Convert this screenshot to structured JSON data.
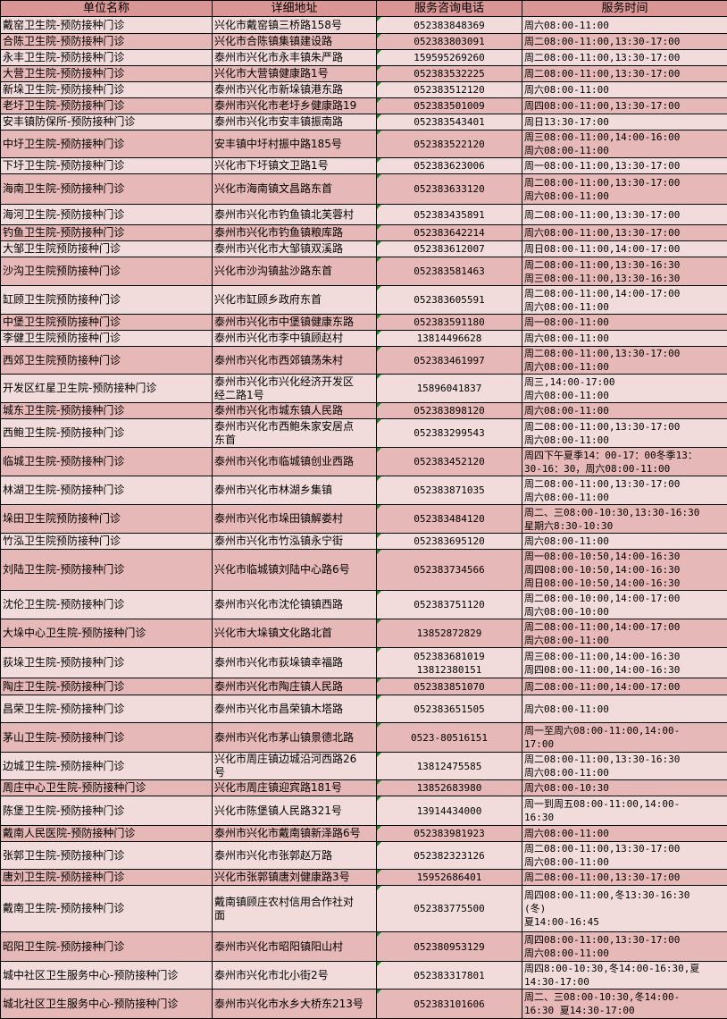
{
  "table": {
    "headers": [
      "单位名称",
      "详细地址",
      "服务咨询电话",
      "服务时间"
    ],
    "colors": {
      "header": "#da9694",
      "row_dark": "#e6b8b7",
      "row_light": "#f2dcdb",
      "comment_marker": "#1a8a1a"
    },
    "rows": [
      [
        "戴窑卫生院-预防接种门诊",
        "兴化市戴窑镇三桥路158号",
        "052383848369",
        "周六08:00-11:00"
      ],
      [
        "合陈卫生院-预防接种门诊",
        "兴化市合陈镇集镇建设路",
        "052383803091",
        "周二08:00-11:00,13:30-17:00"
      ],
      [
        "永丰卫生院-预防接种门诊",
        "泰州市兴化市永丰镇朱严路",
        "15959526926​0",
        "周二08:00-11:00,13:30-17:00"
      ],
      [
        "大营卫生院-预防接种门诊",
        "兴化市大营镇健康路1号",
        "052383532225",
        "周二08:00-11:00,13:30-17:00"
      ],
      [
        "新垛卫生院-预防接种门诊",
        "泰州市兴化市新垛镇港东路",
        "052383512120",
        "周六08:00-11:00"
      ],
      [
        "老圩卫生院-预防接种门诊",
        "泰州市兴化市老圩乡健康路19",
        "052383501009",
        "周四08:00-11:00,13:30-17:00"
      ],
      [
        "安丰镇防保所-预防接种门诊",
        "泰州市兴化市安丰镇振南路",
        "052383543401",
        "周日13:30-17:00"
      ],
      [
        "中圩卫生院-预防接种门诊",
        "安丰镇中圩村振中路185号",
        "052383522120",
        "周三08:00-11:00,14:00-16:00\n周六08:00-11:00"
      ],
      [
        "下圩卫生院-预防接种门诊",
        "兴化市下圩镇文卫路1号",
        "052383623006",
        "周一08:00-11:00,13:30-17:00"
      ],
      [
        "海南卫生院-预防接种门诊",
        "兴化市海南镇文昌路东首",
        "052383633120",
        "周二08:00-11:00,13:30-17:00\n周六08:00-11:00"
      ],
      [
        "海河卫生院-预防接种门诊",
        "泰州市兴化市钓鱼镇北芙蓉村",
        "052383435891",
        "周二08:00-11:00,13:30-17:00"
      ],
      [
        "钓鱼卫生院-预防接种门诊",
        "泰州市兴化市钓鱼镇粮库路",
        "052383642214",
        "周六08:00-11:00,13:30-17:00"
      ],
      [
        "大邹卫生院预防接种门诊",
        "泰州市兴化市大邹镇双溪路",
        "052383612007",
        "周日08:00-11:00,14:00-17:00"
      ],
      [
        "沙沟卫生院预防接种门诊",
        "兴化市沙沟镇盐沙路东首",
        "052383581463",
        "周二08:00-11:00,13:30-16:30\n周三08:00-11:00,13:30-16:30"
      ],
      [
        "缸顾卫生院预防接种门诊",
        "兴化市缸顾乡政府东首",
        "052383605591",
        "周二08:00-11:00,14:00-17:00\n周六08:00-11:00"
      ],
      [
        "中堡卫生院预防接种门诊",
        "泰州市兴化市中堡镇健康东路",
        "052383591180",
        "周一08:00-11:00"
      ],
      [
        "李健卫生院预防接种门诊",
        "泰州市兴化市李中镇顾赵村",
        "13814496628",
        "周六08:00-11:00"
      ],
      [
        "西郊卫生院预防接种门诊",
        "泰州市兴化市西郊镇荡朱村",
        "052383461997",
        "周二08:00-11:00,13:30-17:00\n周六08:00-11:00"
      ],
      [
        "开发区红星卫生院-预防接种门诊",
        "泰州市兴化市兴化经济开发区\n经二路1号",
        "15896041837",
        "周三,14:00-17:00\n周六08:00-11:00"
      ],
      [
        "城东卫生院-预防接种门诊",
        "泰州市兴化市城东镇人民路",
        "052383898120",
        "周六08:00-11:00"
      ],
      [
        "西鲍卫生院-预防接种门诊",
        "泰州市兴化市西鲍朱家安居点\n东首",
        "052383299543",
        "周二08:00-11:00,13:30-17:00\n周六08:00-11:00"
      ],
      [
        "临城卫生院-预防接种门诊",
        "泰州市兴化市临城镇创业西路",
        "052383452120",
        "周四下午夏季14：00-17：00冬季13：\n30-16：30，周六08:00-11:00"
      ],
      [
        "林湖卫生院-预防接种门诊",
        "泰州市兴化市林湖乡集镇",
        "052383871035",
        "周二08:00-11:00,13:30-17:00\n周六08:00-11:00"
      ],
      [
        "垛田卫生院预防接种门诊",
        "泰州市兴化市垛田镇解娄村",
        "052383484120",
        "周二、三08:00-10:30,13:30-16:30\n星期六8:30-10:30"
      ],
      [
        "竹泓卫生院预防接种门诊",
        "泰州市兴化市竹泓镇永宁街",
        "052383695120",
        "周六08:00-11:00"
      ],
      [
        "刘陆卫生院-预防接种门诊",
        "兴化市临城镇刘陆中心路6号",
        "052383734566",
        "周一08:00-10:50,14:00-16:30\n周四08:00-10:50,14:00-16:30\n周日08:00-10:50,14:00-16:30"
      ],
      [
        "沈伦卫生院-预防接种门诊",
        "泰州市兴化市沈伦镇镇西路",
        "052383751120",
        "周二08:00-10:00,14:00-17:00\n周六08:00-10:00"
      ],
      [
        "大垛中心卫生院-预防接种门诊",
        "兴化市大垛镇文化路北首",
        "13852872829",
        "周二08:00-11:00,14:00-17:00\n周六08:00-11:00"
      ],
      [
        "荻垛卫生院-预防接种门诊",
        "泰州市兴化市荻垛镇幸福路",
        "052383681019\n13812380151",
        "周三08:00-11:00,14:00-16:30\n周四08:00-11:00,14:00-16:30"
      ],
      [
        "陶庄卫生院-预防接种门诊",
        "泰州市兴化市陶庄镇人民路",
        "052383851070",
        "周二08:00-11:00,14:00-17:00"
      ],
      [
        "昌荣卫生院-预防接种门诊",
        "泰州市兴化市昌荣镇木塔路",
        "052383651505",
        "周六08:00-11:00"
      ],
      [
        "茅山卫生院-预防接种门诊",
        "泰州市兴化市茅山镇景德北路",
        "0523-80516151",
        "周一至周六08:00-11:00,14:00-\n17:00"
      ],
      [
        "边城卫生院-预防接种门诊",
        "兴化市周庄镇边城沿河西路26\n号",
        "13812475585",
        "周二08:00-11:00,13:30-16:30\n周六08:00-11:00"
      ],
      [
        "周庄中心卫生院-预防接种门诊",
        "兴化市周庄镇迎宾路181号",
        "13852683980",
        "周六08:00-10:30"
      ],
      [
        "陈堡卫生院-预防接种门诊",
        "兴化市陈堡镇人民路321号",
        "13914434000",
        "周一到周五08:00-11:00,14:00-\n16:30"
      ],
      [
        "戴南人民医院-预防接种门诊",
        "泰州市兴化市戴南镇新泽路6号",
        "052383981923",
        "周六08:00-11:00"
      ],
      [
        "张郭卫生院-预防接种门诊",
        "泰州市兴化市张郭赵万路",
        "052382323126",
        "周二08:00-11:00,13:30-17:00\n周六08:00-11:00"
      ],
      [
        "唐刘卫生院-预防接种门诊",
        "兴化市张郭镇唐刘健康路3号",
        "15952686401",
        "周二08:00-11:00,13:30-17:00"
      ],
      [
        "戴南卫生院-预防接种门诊",
        "戴南镇顾庄农村信用合作社对\n面",
        "052383775500",
        "周四08:00-11:00,冬13:30-16:30\n(冬)\n夏14:00-16:45"
      ],
      [
        "昭阳卫生院-预防接种门诊",
        "泰州市兴化市昭阳镇阳山村",
        "052380953129",
        "周四08:00-11:00,13:30-17:00\n周六08:00-11:00"
      ],
      [
        "城中社区卫生服务中心-预防接种门诊",
        "泰州市兴化市北小街2号",
        "052383317801",
        "周四8:00-10:30,冬14:00-16:30,夏\n14:30-17:00"
      ],
      [
        "城北社区卫生服务中心-预防接种门诊",
        "泰州市兴化市水乡大桥东213号",
        "052383101606",
        "周二、三08:00-10:30,冬14:00-\n16:30 夏14:30-17:00"
      ]
    ]
  }
}
